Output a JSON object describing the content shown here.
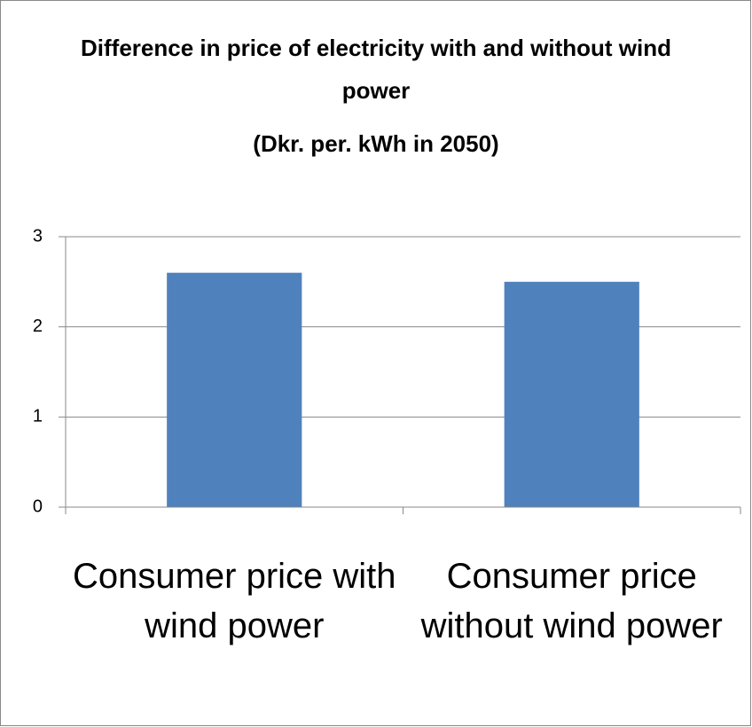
{
  "chart_data": {
    "type": "bar",
    "title": "Difference in price of electricity with and without wind power",
    "subtitle": "(Dkr. per. kWh in 2050)",
    "categories": [
      "Consumer price with wind power",
      "Consumer price without wind power"
    ],
    "values": [
      2.6,
      2.5
    ],
    "color": "#4f81bd",
    "ylim": [
      0,
      3
    ],
    "yticks": [
      0,
      1,
      2,
      3
    ],
    "grid": true
  }
}
